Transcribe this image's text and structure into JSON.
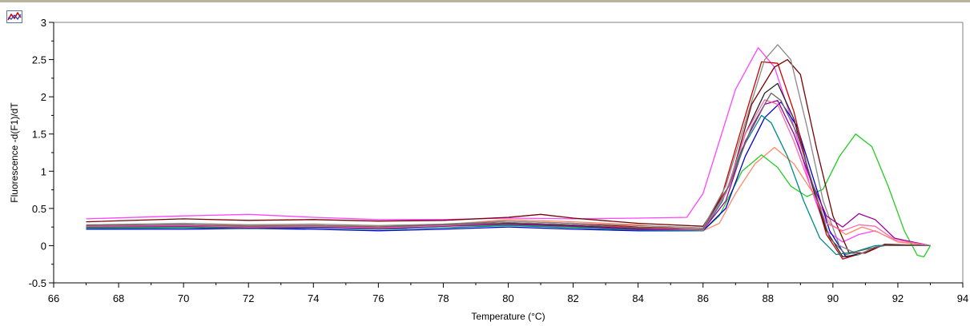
{
  "chart_data": {
    "type": "line",
    "title": "",
    "xlabel": "Temperature (°C)",
    "ylabel": "Fluorescence -d(F1)/dT",
    "xlim": [
      66,
      94
    ],
    "ylim": [
      -0.5,
      3
    ],
    "xticks": [
      66,
      68,
      70,
      72,
      74,
      76,
      78,
      80,
      82,
      84,
      86,
      88,
      90,
      92,
      94
    ],
    "yticks": [
      -0.5,
      0,
      0.5,
      1,
      1.5,
      2,
      2.5,
      3
    ],
    "ytick_labels": [
      "-0.5",
      "0",
      "0.5",
      "1",
      "1.5",
      "2",
      "2.5",
      "3"
    ],
    "grid": false,
    "legend": "none",
    "series": [
      {
        "color": "#ff44ff",
        "points": [
          [
            67,
            0.36
          ],
          [
            70,
            0.4
          ],
          [
            72,
            0.42
          ],
          [
            74,
            0.38
          ],
          [
            76,
            0.35
          ],
          [
            78,
            0.35
          ],
          [
            80,
            0.37
          ],
          [
            82,
            0.36
          ],
          [
            84,
            0.37
          ],
          [
            85.5,
            0.38
          ],
          [
            86,
            0.7
          ],
          [
            86.5,
            1.4
          ],
          [
            87,
            2.1
          ],
          [
            87.7,
            2.66
          ],
          [
            88.2,
            2.4
          ],
          [
            88.8,
            1.6
          ],
          [
            89.3,
            0.8
          ],
          [
            89.8,
            0.2
          ],
          [
            90.3,
            0.05
          ],
          [
            90.8,
            0.15
          ],
          [
            91.3,
            0.2
          ],
          [
            92,
            0.05
          ],
          [
            93,
            0.0
          ]
        ]
      },
      {
        "color": "#ff8866",
        "points": [
          [
            67,
            0.25
          ],
          [
            70,
            0.28
          ],
          [
            72,
            0.27
          ],
          [
            74,
            0.27
          ],
          [
            76,
            0.26
          ],
          [
            78,
            0.28
          ],
          [
            80,
            0.35
          ],
          [
            82,
            0.32
          ],
          [
            84,
            0.28
          ],
          [
            86,
            0.2
          ],
          [
            86.5,
            0.3
          ],
          [
            87,
            0.7
          ],
          [
            87.6,
            1.1
          ],
          [
            88.2,
            1.32
          ],
          [
            88.8,
            1.1
          ],
          [
            89.4,
            0.7
          ],
          [
            89.9,
            0.3
          ],
          [
            90.4,
            0.15
          ],
          [
            90.9,
            0.25
          ],
          [
            91.4,
            0.18
          ],
          [
            92,
            0.05
          ],
          [
            93,
            0.0
          ]
        ]
      },
      {
        "color": "#22cc22",
        "points": [
          [
            67,
            0.24
          ],
          [
            70,
            0.25
          ],
          [
            72,
            0.24
          ],
          [
            74,
            0.25
          ],
          [
            76,
            0.24
          ],
          [
            78,
            0.26
          ],
          [
            80,
            0.28
          ],
          [
            82,
            0.25
          ],
          [
            84,
            0.22
          ],
          [
            86,
            0.2
          ],
          [
            86.5,
            0.4
          ],
          [
            87.2,
            1.0
          ],
          [
            87.8,
            1.22
          ],
          [
            88.3,
            1.05
          ],
          [
            88.7,
            0.8
          ],
          [
            89.2,
            0.66
          ],
          [
            89.7,
            0.76
          ],
          [
            90.2,
            1.2
          ],
          [
            90.7,
            1.5
          ],
          [
            91.2,
            1.33
          ],
          [
            91.7,
            0.8
          ],
          [
            92.2,
            0.2
          ],
          [
            92.6,
            -0.13
          ],
          [
            92.8,
            -0.15
          ],
          [
            93,
            0.0
          ]
        ]
      },
      {
        "color": "#0000cc",
        "points": [
          [
            67,
            0.22
          ],
          [
            70,
            0.22
          ],
          [
            72,
            0.23
          ],
          [
            74,
            0.22
          ],
          [
            76,
            0.2
          ],
          [
            78,
            0.22
          ],
          [
            80,
            0.25
          ],
          [
            82,
            0.22
          ],
          [
            84,
            0.2
          ],
          [
            86,
            0.2
          ],
          [
            86.7,
            0.5
          ],
          [
            87.3,
            1.2
          ],
          [
            87.9,
            1.72
          ],
          [
            88.4,
            1.93
          ],
          [
            88.9,
            1.6
          ],
          [
            89.4,
            0.9
          ],
          [
            89.9,
            0.2
          ],
          [
            90.4,
            -0.15
          ],
          [
            90.9,
            -0.1
          ],
          [
            91.5,
            0.0
          ],
          [
            93,
            0.0
          ]
        ]
      },
      {
        "color": "#cc0000",
        "points": [
          [
            67,
            0.27
          ],
          [
            70,
            0.28
          ],
          [
            72,
            0.26
          ],
          [
            74,
            0.27
          ],
          [
            76,
            0.25
          ],
          [
            78,
            0.28
          ],
          [
            80,
            0.33
          ],
          [
            82,
            0.3
          ],
          [
            84,
            0.25
          ],
          [
            86,
            0.22
          ],
          [
            86.6,
            0.7
          ],
          [
            87.2,
            1.6
          ],
          [
            87.8,
            2.47
          ],
          [
            88.3,
            2.45
          ],
          [
            88.8,
            1.8
          ],
          [
            89.3,
            0.9
          ],
          [
            89.8,
            0.15
          ],
          [
            90.3,
            -0.18
          ],
          [
            90.9,
            -0.1
          ],
          [
            91.5,
            0.0
          ],
          [
            93,
            0.0
          ]
        ]
      },
      {
        "color": "#770000",
        "points": [
          [
            67,
            0.32
          ],
          [
            70,
            0.36
          ],
          [
            72,
            0.34
          ],
          [
            74,
            0.35
          ],
          [
            76,
            0.33
          ],
          [
            78,
            0.34
          ],
          [
            80,
            0.38
          ],
          [
            81,
            0.42
          ],
          [
            82,
            0.37
          ],
          [
            84,
            0.3
          ],
          [
            86,
            0.26
          ],
          [
            86.8,
            0.8
          ],
          [
            87.5,
            1.9
          ],
          [
            88.2,
            2.4
          ],
          [
            88.6,
            2.5
          ],
          [
            89,
            2.3
          ],
          [
            89.5,
            1.3
          ],
          [
            90,
            0.4
          ],
          [
            90.5,
            -0.1
          ],
          [
            91,
            -0.1
          ],
          [
            91.6,
            0.02
          ],
          [
            93,
            0.0
          ]
        ]
      },
      {
        "color": "#222222",
        "points": [
          [
            67,
            0.26
          ],
          [
            70,
            0.27
          ],
          [
            72,
            0.25
          ],
          [
            74,
            0.26
          ],
          [
            76,
            0.24
          ],
          [
            78,
            0.27
          ],
          [
            80,
            0.3
          ],
          [
            82,
            0.27
          ],
          [
            84,
            0.23
          ],
          [
            86,
            0.22
          ],
          [
            86.7,
            0.7
          ],
          [
            87.3,
            1.5
          ],
          [
            87.9,
            2.05
          ],
          [
            88.3,
            2.18
          ],
          [
            88.8,
            1.7
          ],
          [
            89.3,
            0.9
          ],
          [
            89.8,
            0.2
          ],
          [
            90.3,
            -0.15
          ],
          [
            90.8,
            -0.12
          ],
          [
            91.4,
            0.0
          ],
          [
            93,
            0.0
          ]
        ]
      },
      {
        "color": "#888888",
        "points": [
          [
            67,
            0.28
          ],
          [
            70,
            0.3
          ],
          [
            72,
            0.28
          ],
          [
            74,
            0.29
          ],
          [
            76,
            0.27
          ],
          [
            78,
            0.29
          ],
          [
            80,
            0.33
          ],
          [
            82,
            0.3
          ],
          [
            84,
            0.27
          ],
          [
            86,
            0.24
          ],
          [
            86.7,
            0.8
          ],
          [
            87.4,
            1.8
          ],
          [
            87.9,
            2.5
          ],
          [
            88.3,
            2.7
          ],
          [
            88.7,
            2.5
          ],
          [
            89.2,
            1.6
          ],
          [
            89.7,
            0.6
          ],
          [
            90.2,
            0.0
          ],
          [
            90.8,
            -0.12
          ],
          [
            91.4,
            0.0
          ],
          [
            93,
            0.0
          ]
        ]
      },
      {
        "color": "#008888",
        "points": [
          [
            67,
            0.23
          ],
          [
            70,
            0.24
          ],
          [
            72,
            0.23
          ],
          [
            74,
            0.24
          ],
          [
            76,
            0.22
          ],
          [
            78,
            0.24
          ],
          [
            80,
            0.27
          ],
          [
            82,
            0.24
          ],
          [
            84,
            0.21
          ],
          [
            86,
            0.2
          ],
          [
            86.6,
            0.6
          ],
          [
            87.2,
            1.3
          ],
          [
            87.8,
            1.75
          ],
          [
            88.1,
            1.65
          ],
          [
            88.6,
            1.2
          ],
          [
            89.1,
            0.6
          ],
          [
            89.6,
            0.1
          ],
          [
            90.1,
            -0.12
          ],
          [
            90.7,
            -0.08
          ],
          [
            91.3,
            0.0
          ],
          [
            93,
            0.0
          ]
        ]
      },
      {
        "color": "#990099",
        "points": [
          [
            67,
            0.25
          ],
          [
            70,
            0.26
          ],
          [
            72,
            0.24
          ],
          [
            74,
            0.25
          ],
          [
            76,
            0.23
          ],
          [
            78,
            0.26
          ],
          [
            80,
            0.29
          ],
          [
            82,
            0.26
          ],
          [
            84,
            0.22
          ],
          [
            86,
            0.21
          ],
          [
            86.7,
            0.6
          ],
          [
            87.3,
            1.4
          ],
          [
            87.9,
            1.9
          ],
          [
            88.3,
            1.95
          ],
          [
            88.8,
            1.5
          ],
          [
            89.3,
            0.9
          ],
          [
            89.8,
            0.4
          ],
          [
            90.3,
            0.25
          ],
          [
            90.8,
            0.43
          ],
          [
            91.3,
            0.35
          ],
          [
            91.9,
            0.1
          ],
          [
            93,
            0.0
          ]
        ]
      },
      {
        "color": "#ff66aa",
        "points": [
          [
            67,
            0.26
          ],
          [
            70,
            0.27
          ],
          [
            72,
            0.25
          ],
          [
            74,
            0.26
          ],
          [
            76,
            0.24
          ],
          [
            78,
            0.27
          ],
          [
            80,
            0.31
          ],
          [
            82,
            0.28
          ],
          [
            84,
            0.24
          ],
          [
            86,
            0.21
          ],
          [
            86.7,
            0.7
          ],
          [
            87.3,
            1.5
          ],
          [
            87.9,
            1.96
          ],
          [
            88.3,
            1.9
          ],
          [
            88.8,
            1.4
          ],
          [
            89.3,
            0.8
          ],
          [
            89.8,
            0.3
          ],
          [
            90.3,
            0.2
          ],
          [
            90.8,
            0.28
          ],
          [
            91.3,
            0.26
          ],
          [
            91.9,
            0.08
          ],
          [
            93,
            0.0
          ]
        ]
      },
      {
        "color": "#666666",
        "points": [
          [
            67,
            0.27
          ],
          [
            70,
            0.28
          ],
          [
            72,
            0.26
          ],
          [
            74,
            0.27
          ],
          [
            76,
            0.25
          ],
          [
            78,
            0.28
          ],
          [
            80,
            0.31
          ],
          [
            82,
            0.28
          ],
          [
            84,
            0.24
          ],
          [
            86,
            0.22
          ],
          [
            86.8,
            0.8
          ],
          [
            87.5,
            1.6
          ],
          [
            88.1,
            2.05
          ],
          [
            88.4,
            1.95
          ],
          [
            88.9,
            1.5
          ],
          [
            89.4,
            0.8
          ],
          [
            89.9,
            0.1
          ],
          [
            90.4,
            -0.12
          ],
          [
            91,
            -0.05
          ],
          [
            91.6,
            0.0
          ],
          [
            93,
            0.0
          ]
        ]
      }
    ]
  }
}
